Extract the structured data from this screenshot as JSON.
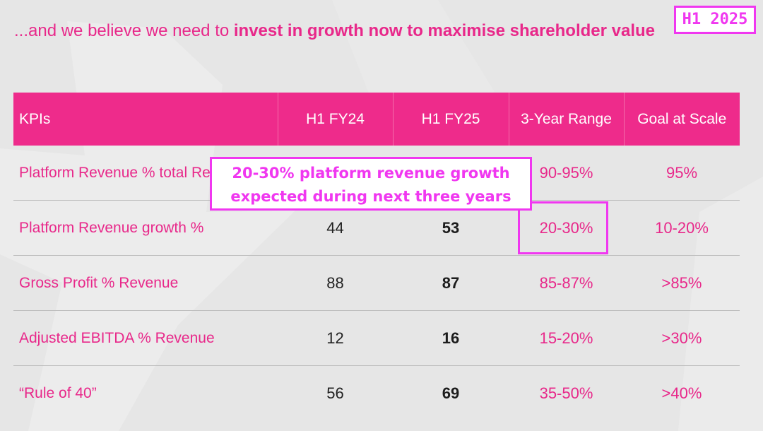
{
  "headline": {
    "prefix": "...and we believe we need to ",
    "emphasis": "invest in growth now to maximise shareholder value"
  },
  "period_badge": "H1 2025",
  "table": {
    "columns": [
      "KPIs",
      "H1 FY24",
      "H1 FY25",
      "3-Year Range",
      "Goal at Scale"
    ],
    "rows": [
      {
        "kpi": "Platform Revenue % total Revenue",
        "fy24": "",
        "fy25": "",
        "range": "90-95%",
        "goal": "95%"
      },
      {
        "kpi": "Platform Revenue growth %",
        "fy24": "44",
        "fy25": "53",
        "range": "20-30%",
        "goal": "10-20%"
      },
      {
        "kpi": "Gross Profit % Revenue",
        "fy24": "88",
        "fy25": "87",
        "range": "85-87%",
        "goal": ">85%"
      },
      {
        "kpi": "Adjusted EBITDA % Revenue",
        "fy24": "12",
        "fy25": "16",
        "range": "15-20%",
        "goal": ">30%"
      },
      {
        "kpi": "“Rule of 40”",
        "fy24": "56",
        "fy25": "69",
        "range": "35-50%",
        "goal": ">40%"
      }
    ]
  },
  "callout": {
    "line1": "20-30% platform revenue growth",
    "line2": "expected during next three years"
  },
  "colors": {
    "brand_pink": "#ee2b8b",
    "annotation_magenta": "#f037f0",
    "background": "#e6e6e6"
  }
}
